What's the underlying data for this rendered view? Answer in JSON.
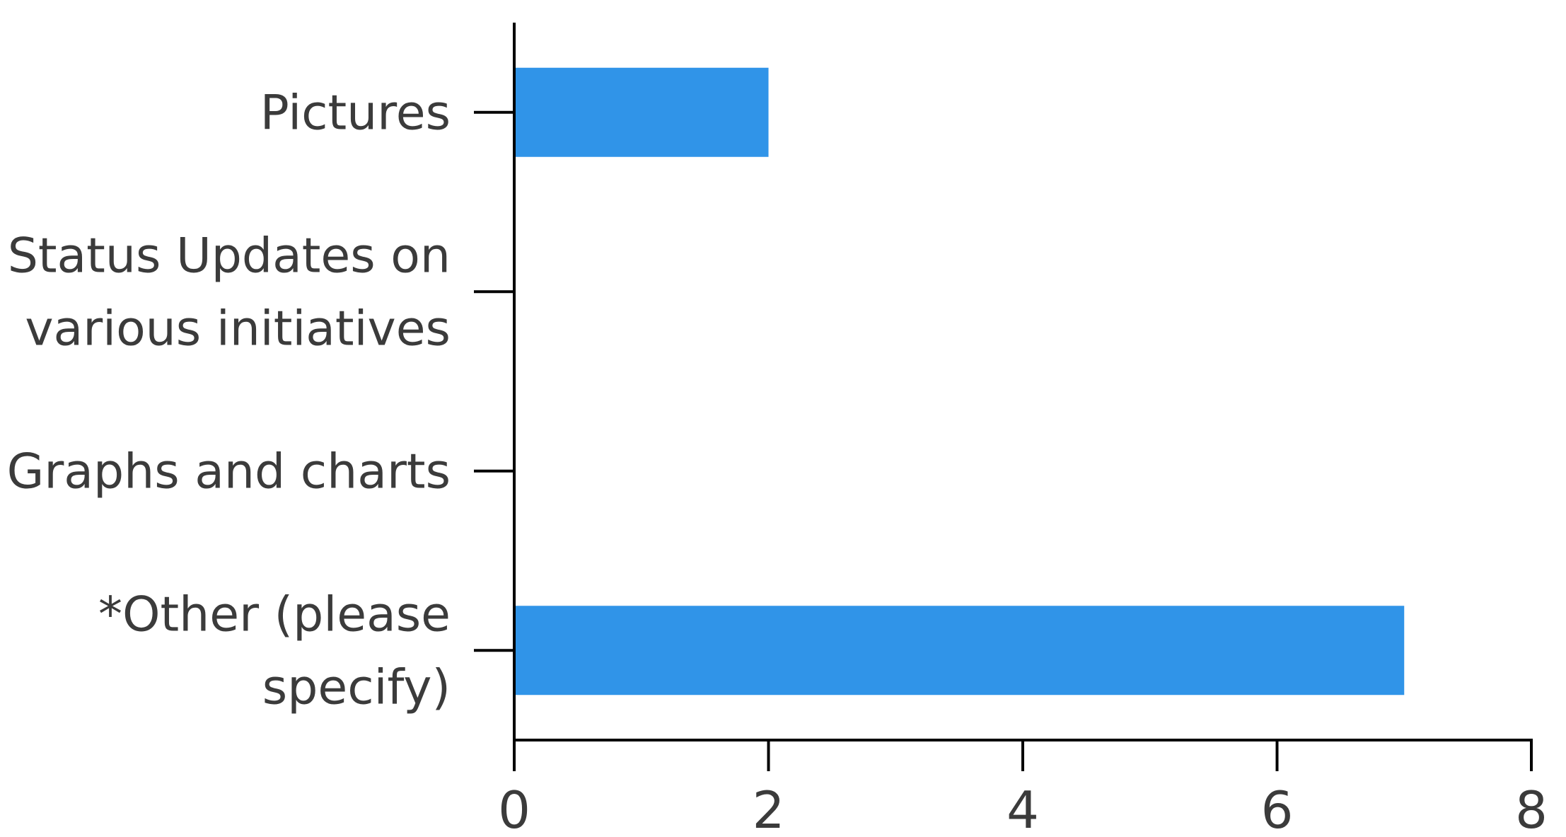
{
  "chart_data": {
    "type": "bar",
    "orientation": "horizontal",
    "categories": [
      "Pictures",
      "Status Updates on various initiatives",
      "Graphs and charts",
      "*Other (please specify)"
    ],
    "category_lines": [
      [
        "Pictures"
      ],
      [
        "Status Updates on",
        "various initiatives"
      ],
      [
        "Graphs and charts"
      ],
      [
        "*Other (please",
        "specify)"
      ]
    ],
    "values": [
      2,
      0,
      0,
      7
    ],
    "xlim": [
      0,
      8
    ],
    "xticks": [
      "0",
      "2",
      "4",
      "6",
      "8"
    ],
    "title": "",
    "xlabel": "",
    "ylabel": "",
    "grid": false,
    "bar_color": "#3094e8",
    "axis_color": "#000000",
    "text_color": "#3b3b3b"
  }
}
